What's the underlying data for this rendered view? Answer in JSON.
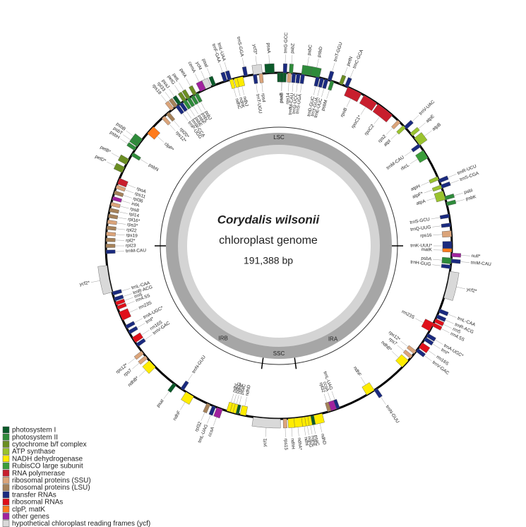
{
  "center": {
    "title": "Corydalis wilsonii",
    "subtitle": "chloroplast genome",
    "size": "191,388 bp"
  },
  "regions": [
    "LSC",
    "IRA",
    "SSC",
    "IRB"
  ],
  "legend": [
    {
      "label": "photosystem I",
      "color": "#0b5a2a"
    },
    {
      "label": "photosystem II",
      "color": "#2e8b3a"
    },
    {
      "label": "cytochrome b/f complex",
      "color": "#6b8e23"
    },
    {
      "label": "ATP synthase",
      "color": "#9ac32e"
    },
    {
      "label": "NADH dehydrogenase",
      "color": "#ffec00"
    },
    {
      "label": "RubisCO large subunit",
      "color": "#3a9d3a"
    },
    {
      "label": "RNA polymerase",
      "color": "#c81e2d"
    },
    {
      "label": "ribosomal proteins (SSU)",
      "color": "#dba47a"
    },
    {
      "label": "ribosomal proteins (LSU)",
      "color": "#a6825a"
    },
    {
      "label": "transfer RNAs",
      "color": "#1a2a7f"
    },
    {
      "label": "ribosomal RNAs",
      "color": "#e0101a"
    },
    {
      "label": "clpP, matK",
      "color": "#ff7b1c"
    },
    {
      "label": "other genes",
      "color": "#a0229e"
    },
    {
      "label": "hypothetical chloroplast reading frames (ycf)",
      "color": "#d9d9d9"
    }
  ],
  "genes": [
    {
      "name": "trnG-GCC",
      "color": "#1a2a7f"
    },
    {
      "name": "psbZ",
      "color": "#2e8b3a"
    },
    {
      "name": "psbC",
      "color": "#2e8b3a"
    },
    {
      "name": "psbD",
      "color": "#2e8b3a"
    },
    {
      "name": "trnT-GGU",
      "color": "#1a2a7f"
    },
    {
      "name": "petN",
      "color": "#6b8e23"
    },
    {
      "name": "trnC-GCA",
      "color": "#1a2a7f"
    },
    {
      "name": "psaB",
      "color": "#0b5a2a"
    },
    {
      "name": "rps14",
      "color": "#dba47a"
    },
    {
      "name": "trnfM-CAU",
      "color": "#1a2a7f"
    },
    {
      "name": "trnG-UCC",
      "color": "#1a2a7f"
    },
    {
      "name": "trnS-UGA",
      "color": "#1a2a7f"
    },
    {
      "name": "trnD-GUC",
      "color": "#1a2a7f"
    },
    {
      "name": "trnY-GUA",
      "color": "#1a2a7f"
    },
    {
      "name": "trnE-UUC",
      "color": "#1a2a7f"
    },
    {
      "name": "psbM",
      "color": "#2e8b3a"
    },
    {
      "name": "rpoB",
      "color": "#c81e2d"
    },
    {
      "name": "rpoC1*",
      "color": "#c81e2d"
    },
    {
      "name": "rpoC2",
      "color": "#c81e2d"
    },
    {
      "name": "rps2",
      "color": "#dba47a"
    },
    {
      "name": "atpI",
      "color": "#9ac32e"
    },
    {
      "name": "trnV-UAC",
      "color": "#1a2a7f"
    },
    {
      "name": "atpE",
      "color": "#9ac32e"
    },
    {
      "name": "atpB",
      "color": "#9ac32e"
    },
    {
      "name": "trnM-CAU",
      "color": "#1a2a7f"
    },
    {
      "name": "rbcL",
      "color": "#3a9d3a"
    },
    {
      "name": "atpH",
      "color": "#9ac32e"
    },
    {
      "name": "atpF*",
      "color": "#9ac32e"
    },
    {
      "name": "atpA",
      "color": "#9ac32e"
    },
    {
      "name": "trnR-UCU",
      "color": "#1a2a7f"
    },
    {
      "name": "trnS-CGA",
      "color": "#1a2a7f"
    },
    {
      "name": "psbI",
      "color": "#2e8b3a"
    },
    {
      "name": "psbK",
      "color": "#2e8b3a"
    },
    {
      "name": "trnS-GCU",
      "color": "#1a2a7f"
    },
    {
      "name": "trnQ-UUG",
      "color": "#1a2a7f"
    },
    {
      "name": "rps16",
      "color": "#dba47a"
    },
    {
      "name": "trnK-UUU*",
      "color": "#1a2a7f"
    },
    {
      "name": "matK",
      "color": "#ff7b1c"
    },
    {
      "name": "psbA",
      "color": "#2e8b3a"
    },
    {
      "name": "trnH-GUG",
      "color": "#1a2a7f"
    },
    {
      "name": "null*",
      "color": "#a0229e"
    },
    {
      "name": "trnM-CAU",
      "color": "#1a2a7f"
    },
    {
      "name": "ycf2*",
      "color": "#d9d9d9"
    },
    {
      "name": "trnL-CAA",
      "color": "#1a2a7f"
    },
    {
      "name": "trnR-ACG",
      "color": "#1a2a7f"
    },
    {
      "name": "rrn5",
      "color": "#e0101a"
    },
    {
      "name": "rrn4.5S",
      "color": "#e0101a"
    },
    {
      "name": "rrn23S",
      "color": "#e0101a"
    },
    {
      "name": "trnA-UGC*",
      "color": "#1a2a7f"
    },
    {
      "name": "trnI*",
      "color": "#1a2a7f"
    },
    {
      "name": "rrn16S",
      "color": "#e0101a"
    },
    {
      "name": "trnV-GAC",
      "color": "#1a2a7f"
    },
    {
      "name": "rps12*",
      "color": "#dba47a"
    },
    {
      "name": "rps7",
      "color": "#dba47a"
    },
    {
      "name": "ndhB*",
      "color": "#ffec00"
    },
    {
      "name": "ndhF",
      "color": "#ffec00"
    },
    {
      "name": "trnN-GUU",
      "color": "#1a2a7f"
    },
    {
      "name": "trnL-UAG",
      "color": "#1a2a7f"
    },
    {
      "name": "ccsA",
      "color": "#a0229e"
    },
    {
      "name": "rpl32",
      "color": "#a6825a"
    },
    {
      "name": "ndhD",
      "color": "#ffec00"
    },
    {
      "name": "psaC",
      "color": "#0b5a2a"
    },
    {
      "name": "ndhE",
      "color": "#ffec00"
    },
    {
      "name": "ndhG",
      "color": "#ffec00"
    },
    {
      "name": "ndhI",
      "color": "#ffec00"
    },
    {
      "name": "ndhA*",
      "color": "#ffec00"
    },
    {
      "name": "ndhH",
      "color": "#ffec00"
    },
    {
      "name": "rps15",
      "color": "#dba47a"
    },
    {
      "name": "ycf1",
      "color": "#d9d9d9"
    },
    {
      "name": "ndhD",
      "color": "#ffec00"
    },
    {
      "name": "psaC",
      "color": "#0b5a2a"
    },
    {
      "name": "ndhE",
      "color": "#ffec00"
    },
    {
      "name": "ndhG",
      "color": "#ffec00"
    },
    {
      "name": "ndhI",
      "color": "#ffec00"
    },
    {
      "name": "ccsA",
      "color": "#a0229e"
    },
    {
      "name": "trnL-UAG",
      "color": "#1a2a7f"
    },
    {
      "name": "rpl32",
      "color": "#a6825a"
    },
    {
      "name": "ndhF",
      "color": "#ffec00"
    },
    {
      "name": "trnN-GUU",
      "color": "#1a2a7f"
    },
    {
      "name": "psaI",
      "color": "#0b5a2a"
    },
    {
      "name": "ndhB*",
      "color": "#ffec00"
    },
    {
      "name": "rps7",
      "color": "#dba47a"
    },
    {
      "name": "rps12*",
      "color": "#dba47a"
    },
    {
      "name": "trnV-GAC",
      "color": "#1a2a7f"
    },
    {
      "name": "rrn16S",
      "color": "#e0101a"
    },
    {
      "name": "trnI*",
      "color": "#1a2a7f"
    },
    {
      "name": "trnA-UGC*",
      "color": "#1a2a7f"
    },
    {
      "name": "rrn23S",
      "color": "#e0101a"
    },
    {
      "name": "rrn4.5S",
      "color": "#e0101a"
    },
    {
      "name": "rrn5",
      "color": "#e0101a"
    },
    {
      "name": "trnR-ACG",
      "color": "#1a2a7f"
    },
    {
      "name": "trnL-CAA",
      "color": "#1a2a7f"
    },
    {
      "name": "ycf2*",
      "color": "#d9d9d9"
    },
    {
      "name": "trnM-CAU",
      "color": "#1a2a7f"
    },
    {
      "name": "rpl23",
      "color": "#a6825a"
    },
    {
      "name": "rpl2*",
      "color": "#a6825a"
    },
    {
      "name": "rps19",
      "color": "#dba47a"
    },
    {
      "name": "rpl22",
      "color": "#a6825a"
    },
    {
      "name": "rps3*",
      "color": "#dba47a"
    },
    {
      "name": "rpl16*",
      "color": "#a6825a"
    },
    {
      "name": "rpl14",
      "color": "#a6825a"
    },
    {
      "name": "rps8",
      "color": "#dba47a"
    },
    {
      "name": "infA",
      "color": "#a0229e"
    },
    {
      "name": "rpl36",
      "color": "#a6825a"
    },
    {
      "name": "rps11",
      "color": "#dba47a"
    },
    {
      "name": "rpoA",
      "color": "#c81e2d"
    },
    {
      "name": "petD*",
      "color": "#6b8e23"
    },
    {
      "name": "petB*",
      "color": "#6b8e23"
    },
    {
      "name": "psbN",
      "color": "#2e8b3a"
    },
    {
      "name": "psbH",
      "color": "#2e8b3a"
    },
    {
      "name": "psbT",
      "color": "#2e8b3a"
    },
    {
      "name": "psbB",
      "color": "#2e8b3a"
    },
    {
      "name": "clpP*",
      "color": "#ff7b1c"
    },
    {
      "name": "rps12*",
      "color": "#dba47a"
    },
    {
      "name": "rpl20*",
      "color": "#a6825a"
    },
    {
      "name": "rps18",
      "color": "#dba47a"
    },
    {
      "name": "rpl33",
      "color": "#a6825a"
    },
    {
      "name": "psaJ",
      "color": "#0b5a2a"
    },
    {
      "name": "petG",
      "color": "#6b8e23"
    },
    {
      "name": "petL",
      "color": "#6b8e23"
    },
    {
      "name": "trnP-UGG",
      "color": "#1a2a7f"
    },
    {
      "name": "trnW-CCA",
      "color": "#1a2a7f"
    },
    {
      "name": "psbE",
      "color": "#2e8b3a"
    },
    {
      "name": "psbF",
      "color": "#2e8b3a"
    },
    {
      "name": "psbL",
      "color": "#2e8b3a"
    },
    {
      "name": "psbJ",
      "color": "#2e8b3a"
    },
    {
      "name": "petA",
      "color": "#6b8e23"
    },
    {
      "name": "cemA",
      "color": "#a0229e"
    },
    {
      "name": "ycf4",
      "color": "#d9d9d9"
    },
    {
      "name": "psaI",
      "color": "#0b5a2a"
    },
    {
      "name": "trnF-GAA",
      "color": "#1a2a7f"
    },
    {
      "name": "trnL-UAA",
      "color": "#1a2a7f"
    },
    {
      "name": "ndhC",
      "color": "#ffec00"
    },
    {
      "name": "ndhK",
      "color": "#ffec00"
    },
    {
      "name": "ndhJ",
      "color": "#ffec00"
    },
    {
      "name": "trnS-GGA",
      "color": "#1a2a7f"
    },
    {
      "name": "trnT-UGU",
      "color": "#1a2a7f"
    },
    {
      "name": "rps4",
      "color": "#dba47a"
    },
    {
      "name": "ycf3*",
      "color": "#d9d9d9"
    },
    {
      "name": "psaA",
      "color": "#0b5a2a"
    },
    {
      "name": "psaB",
      "color": "#0b5a2a"
    }
  ]
}
